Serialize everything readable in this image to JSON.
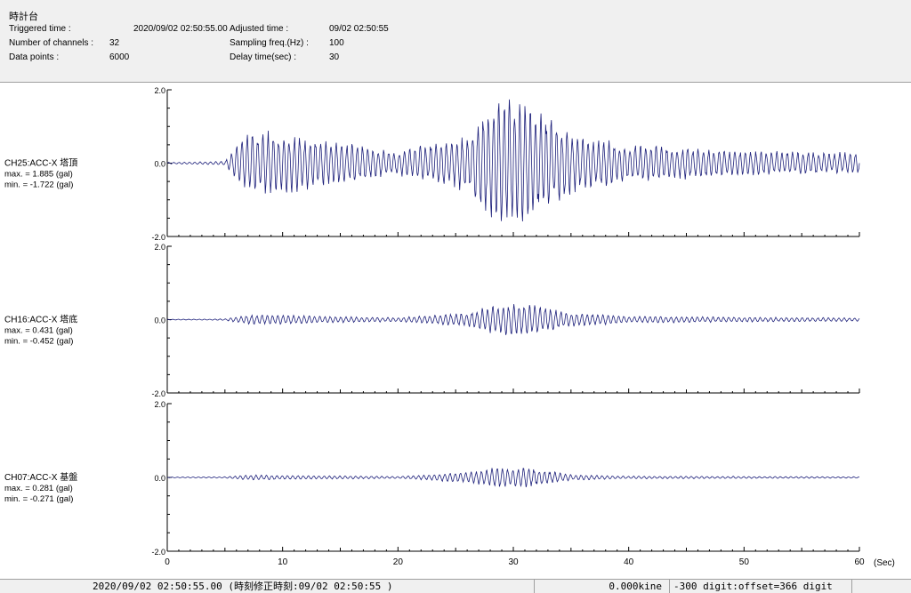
{
  "header": {
    "title": "時計台",
    "triggered_label": "Triggered time :",
    "triggered_value": "2020/09/02 02:50:55.00",
    "channels_label": "Number of channels :",
    "channels_value": "32",
    "datapoints_label": "Data points :",
    "datapoints_value": "6000",
    "adjusted_label": "Adjusted time :",
    "adjusted_value": "09/02 02:50:55",
    "sampling_label": "Sampling freq.(Hz) :",
    "sampling_value": "100",
    "delay_label": "Delay time(sec) :",
    "delay_value": "30"
  },
  "statusbar": {
    "time": "2020/09/02 02:50:55.00 (時刻修正時刻:09/02 02:50:55 )",
    "velocity": "0.000kine",
    "digit": "-300 digit:offset=366 digit"
  },
  "chart_data": {
    "type": "line",
    "line_color": "#1c1f7a",
    "x_unit": "(Sec)",
    "xlim": [
      0,
      60
    ],
    "x_ticks": [
      "0",
      "10",
      "20",
      "30",
      "40",
      "50",
      "60"
    ],
    "ylim": [
      -2.0,
      2.0
    ],
    "y_ticks": [
      "2.0",
      "0.0",
      "-2.0"
    ],
    "envelope_note_x": [
      0,
      5,
      7,
      10,
      13,
      20,
      26,
      28.5,
      31.5,
      35,
      40,
      50,
      60
    ],
    "series": [
      {
        "name": "CH25:ACC-X 塔頂",
        "max_label": "max. = 1.885 (gal)",
        "min_label": "min. = -1.722 (gal)",
        "max": 1.885,
        "min": -1.722,
        "envelope": [
          0.02,
          0.05,
          0.95,
          0.85,
          0.7,
          0.35,
          0.8,
          1.885,
          1.6,
          0.9,
          0.55,
          0.35,
          0.3
        ]
      },
      {
        "name": "CH16:ACC-X 塔底",
        "max_label": "max. = 0.431 (gal)",
        "min_label": "min. = -0.452 (gal)",
        "max": 0.431,
        "min": -0.452,
        "envelope": [
          0.01,
          0.02,
          0.14,
          0.13,
          0.1,
          0.06,
          0.2,
          0.431,
          0.45,
          0.2,
          0.1,
          0.07,
          0.05
        ]
      },
      {
        "name": "CH07:ACC-X 基盤",
        "max_label": "max. = 0.281 (gal)",
        "min_label": "min. = -0.271 (gal)",
        "max": 0.281,
        "min": -0.271,
        "envelope": [
          0.01,
          0.02,
          0.07,
          0.06,
          0.05,
          0.03,
          0.15,
          0.281,
          0.27,
          0.08,
          0.04,
          0.03,
          0.02
        ]
      }
    ]
  }
}
